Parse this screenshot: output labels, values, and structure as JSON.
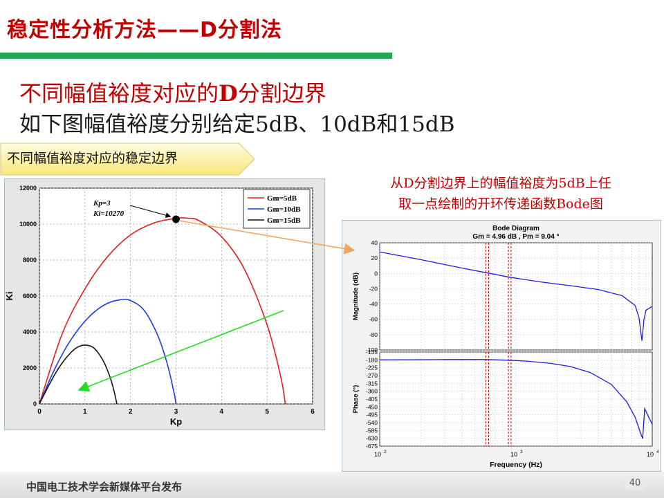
{
  "slide": {
    "title": "稳定性分析方法——D分割法",
    "line1_pre": "不同幅值裕度对应的",
    "line1_bold": "D",
    "line1_post": "分割边界",
    "line2": "如下图幅值裕度分别给定5dB、10dB和15dB",
    "callout": "不同幅值裕度对应的稳定边界",
    "note_line1": "从D分割边界上的幅值裕度为5dB上任",
    "note_line2": "取一点绘制的开环传递函数Bode图",
    "footer": "中国电工技术学会新媒体平台发布",
    "page_number": "40"
  },
  "chart_data": [
    {
      "type": "line",
      "xlabel": "Kp",
      "ylabel": "Ki",
      "xlim": [
        0,
        6
      ],
      "ylim": [
        0,
        12000
      ],
      "xticks": [
        "0",
        "1",
        "2",
        "3",
        "4",
        "5",
        "6"
      ],
      "yticks": [
        "0",
        "2000",
        "4000",
        "6000",
        "8000",
        "10000",
        "12000"
      ],
      "grid": true,
      "legend_position": "top-right",
      "series": [
        {
          "name": "Gm=5dB",
          "color": "#E8191C",
          "x": [
            0,
            0.5,
            1.0,
            1.5,
            2.0,
            2.5,
            3.0,
            3.25,
            3.5,
            4.0,
            4.5,
            5.0,
            5.3,
            5.4
          ],
          "y": [
            0,
            3900,
            6400,
            8200,
            9400,
            10050,
            10320,
            10330,
            10200,
            9300,
            7500,
            4400,
            1500,
            0
          ]
        },
        {
          "name": "Gm=10dB",
          "color": "#1A3BE0",
          "x": [
            0,
            0.3,
            0.6,
            0.9,
            1.2,
            1.5,
            1.8,
            2.0,
            2.3,
            2.6,
            2.8,
            2.95,
            3.0
          ],
          "y": [
            0,
            1750,
            3200,
            4300,
            5100,
            5600,
            5800,
            5750,
            5200,
            3800,
            2300,
            700,
            0
          ]
        },
        {
          "name": "Gm=15dB",
          "color": "#111111",
          "x": [
            0,
            0.2,
            0.4,
            0.6,
            0.8,
            1.0,
            1.2,
            1.4,
            1.55,
            1.65,
            1.7
          ],
          "y": [
            0,
            1000,
            1900,
            2600,
            3100,
            3270,
            3100,
            2400,
            1500,
            600,
            0
          ]
        }
      ],
      "annotation": {
        "line1": "Kp=3",
        "line2": "Ki=10270",
        "x": 3,
        "y": 10270
      }
    },
    {
      "type": "line",
      "title": "Bode Diagram",
      "subtitle": "Gm = 4.96 dB ,  Pm = 9.04 °",
      "xlabel": "Frequency (Hz)",
      "xscale": "log",
      "xlim": [
        100,
        10000
      ],
      "xticks": [
        "10",
        "10",
        "10"
      ],
      "xtick_exponents": [
        "2",
        "3",
        "4"
      ],
      "magnitude": {
        "ylabel": "Magnitude (dB)",
        "ylim": [
          -100,
          40
        ],
        "yticks": [
          "40",
          "20",
          "0",
          "-20",
          "-40",
          "-60",
          "-80",
          "-100"
        ],
        "series": [
          {
            "color": "#1A1AE6",
            "x": [
              100,
              200,
              400,
              600,
              900,
              1500,
              2500,
              4000,
              6000,
              7500,
              8000,
              8400,
              8700,
              9000,
              10000
            ],
            "y": [
              28,
              18,
              7,
              1,
              -5,
              -11,
              -16,
              -21,
              -29,
              -42,
              -58,
              -88,
              -60,
              -48,
              -43
            ]
          }
        ]
      },
      "phase": {
        "ylabel": "Phase (°)",
        "ylim": [
          -675,
          -135
        ],
        "yticks": [
          "-135",
          "-180",
          "-225",
          "-270",
          "-315",
          "-360",
          "-405",
          "-450",
          "-495",
          "-540",
          "-585",
          "-630",
          "-675"
        ],
        "series": [
          {
            "color": "#1A1AE6",
            "x": [
              100,
              300,
              600,
              900,
              1200,
              1800,
              2500,
              3500,
              5000,
              6500,
              7500,
              8200,
              8500,
              8800,
              9300,
              10000
            ],
            "y": [
              -180,
              -178,
              -178,
              -182,
              -187,
              -200,
              -218,
              -252,
              -320,
              -420,
              -510,
              -600,
              -632,
              -460,
              -500,
              -550
            ]
          }
        ]
      },
      "markers": [
        {
          "color": "#CC0000",
          "x": [
            600,
            630,
            880,
            920
          ]
        }
      ]
    }
  ]
}
